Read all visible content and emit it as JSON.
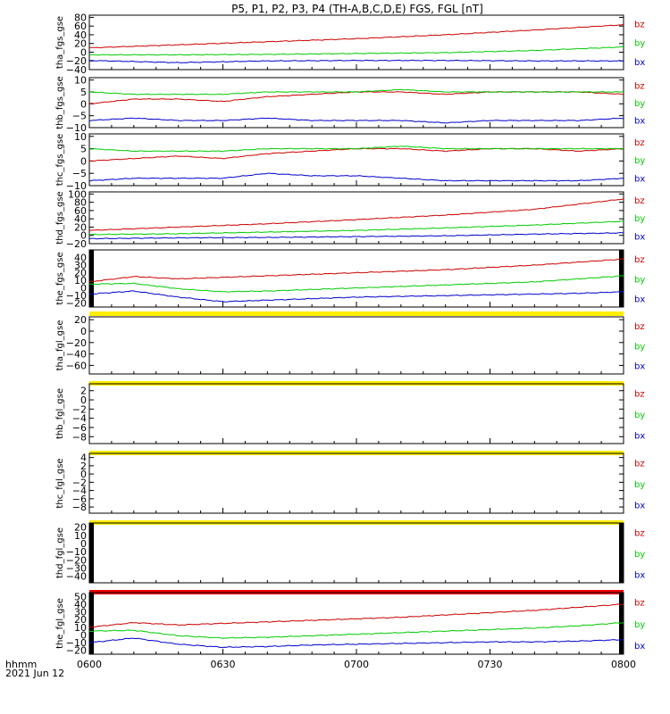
{
  "chart_data": {
    "type": "line",
    "title": "P5, P1, P2, P3, P4 (TH-A,B,C,D,E) FGS, FGL [nT]",
    "x_axis": {
      "ticks": [
        "0600",
        "0630",
        "0700",
        "0730",
        "0800"
      ],
      "range_minutes": [
        0,
        120
      ],
      "label_line1": "hhmm",
      "label_line2": "2021 Jun 12"
    },
    "legend": [
      "bz",
      "by",
      "bx"
    ],
    "colors": {
      "bz": "#cc0000",
      "by": "#00cc00",
      "bx": "#0000cc"
    },
    "panels": [
      {
        "ylabel": "tha_fgs_gse",
        "ylim": [
          -40,
          85
        ],
        "yticks": [
          -40,
          -20,
          0,
          20,
          40,
          60,
          80
        ],
        "yticklabels": [
          "−40",
          "−20",
          "0",
          "20",
          "40",
          "60",
          "80"
        ],
        "x": [
          0,
          20,
          40,
          60,
          80,
          100,
          120
        ],
        "series": [
          {
            "name": "bz",
            "values": [
              10,
              17,
              24,
              31,
              40,
              51,
              63
            ]
          },
          {
            "name": "by",
            "values": [
              -6,
              -6,
              -5,
              -3,
              -1,
              4,
              12
            ]
          },
          {
            "name": "bx",
            "values": [
              -19,
              -24,
              -20,
              -19,
              -19,
              -20,
              -20
            ]
          }
        ]
      },
      {
        "ylabel": "thb_fgs_gse",
        "ylim": [
          -10,
          11
        ],
        "yticks": [
          -10,
          -5,
          0,
          5,
          10
        ],
        "yticklabels": [
          "−10",
          "−5",
          "0",
          "5",
          "10"
        ],
        "x": [
          0,
          10,
          20,
          30,
          40,
          50,
          60,
          70,
          80,
          90,
          100,
          110,
          120
        ],
        "series": [
          {
            "name": "bz",
            "values": [
              0,
              2,
              2,
              1,
              3,
              4,
              5,
              5,
              4,
              5,
              5,
              5,
              4
            ]
          },
          {
            "name": "by",
            "values": [
              5,
              4,
              4,
              4,
              5,
              5,
              5,
              6,
              5,
              5,
              5,
              5,
              5
            ]
          },
          {
            "name": "bx",
            "values": [
              -7,
              -6,
              -7,
              -7,
              -6,
              -7,
              -7,
              -7,
              -8,
              -7,
              -7,
              -7,
              -6
            ]
          }
        ]
      },
      {
        "ylabel": "thc_fgs_gse",
        "ylim": [
          -10,
          11
        ],
        "yticks": [
          -10,
          -5,
          0,
          5,
          10
        ],
        "yticklabels": [
          "−10",
          "−5",
          "0",
          "5",
          "10"
        ],
        "x": [
          0,
          10,
          20,
          30,
          40,
          50,
          60,
          70,
          80,
          90,
          100,
          110,
          120
        ],
        "series": [
          {
            "name": "bz",
            "values": [
              0,
              1,
              2,
              1,
              3,
              4,
              5,
              5,
              4,
              5,
              5,
              4,
              5
            ]
          },
          {
            "name": "by",
            "values": [
              5,
              4,
              4,
              4,
              5,
              5,
              5,
              6,
              5,
              5,
              5,
              5,
              5
            ]
          },
          {
            "name": "bx",
            "values": [
              -8,
              -7,
              -7,
              -7,
              -5,
              -6,
              -6,
              -7,
              -8,
              -8,
              -8,
              -8,
              -7
            ]
          }
        ]
      },
      {
        "ylabel": "thd_fgs_gse",
        "ylim": [
          -20,
          105
        ],
        "yticks": [
          -20,
          0,
          20,
          40,
          60,
          80,
          100
        ],
        "yticklabels": [
          "−20",
          "0",
          "20",
          "40",
          "60",
          "80",
          "100"
        ],
        "x": [
          0,
          20,
          40,
          60,
          80,
          100,
          120
        ],
        "series": [
          {
            "name": "bz",
            "values": [
              12,
              20,
              28,
              38,
              49,
              63,
              88
            ]
          },
          {
            "name": "by",
            "values": [
              2,
              4,
              8,
              12,
              18,
              25,
              34
            ]
          },
          {
            "name": "bx",
            "values": [
              -8,
              -6,
              -5,
              -3,
              -1,
              3,
              6
            ]
          }
        ]
      },
      {
        "ylabel": "the_fgs_gse",
        "ylim": [
          -25,
          50
        ],
        "yticks": [
          -20,
          -10,
          0,
          10,
          20,
          30,
          40
        ],
        "yticklabels": [
          "−20",
          "−10",
          "0",
          "10",
          "20",
          "30",
          "40"
        ],
        "x": [
          0,
          10,
          20,
          30,
          40,
          50,
          60,
          70,
          80,
          90,
          100,
          110,
          120
        ],
        "series": [
          {
            "name": "bz",
            "values": [
              8,
              15,
              12,
              14,
              16,
              18,
              20,
              22,
              24,
              27,
              30,
              34,
              38
            ]
          },
          {
            "name": "by",
            "values": [
              5,
              6,
              -1,
              -5,
              -4,
              -2,
              0,
              2,
              4,
              6,
              8,
              12,
              16
            ]
          },
          {
            "name": "bx",
            "values": [
              -8,
              -4,
              -12,
              -18,
              -16,
              -14,
              -12,
              -11,
              -10,
              -9,
              -8,
              -7,
              -5
            ]
          }
        ]
      },
      {
        "ylabel": "tha_fgl_gse",
        "ylim": [
          -75,
          25
        ],
        "yticks": [
          -60,
          -40,
          -20,
          0,
          20
        ],
        "yticklabels": [
          "−60",
          "−40",
          "−20",
          "0",
          "20"
        ],
        "series": []
      },
      {
        "ylabel": "thb_fgl_gse",
        "ylim": [
          -9.5,
          3.5
        ],
        "yticks": [
          -8,
          -6,
          -4,
          -2,
          0,
          2
        ],
        "yticklabels": [
          "−8",
          "−6",
          "−4",
          "−2",
          "0",
          "2"
        ],
        "series": []
      },
      {
        "ylabel": "thc_fgl_gse",
        "ylim": [
          -9.5,
          5
        ],
        "yticks": [
          -8,
          -6,
          -4,
          -2,
          0,
          2,
          4
        ],
        "yticklabels": [
          "−8",
          "−6",
          "−4",
          "−2",
          "0",
          "2",
          "4"
        ],
        "series": []
      },
      {
        "ylabel": "thd_fgl_gse",
        "ylim": [
          -48,
          25
        ],
        "yticks": [
          -40,
          -30,
          -20,
          -10,
          0,
          10,
          20
        ],
        "yticklabels": [
          "−40",
          "−30",
          "−20",
          "−10",
          "0",
          "10",
          "20"
        ],
        "series": []
      },
      {
        "ylabel": "the_fgl_gse",
        "ylim": [
          -25,
          55
        ],
        "yticks": [
          -20,
          -10,
          0,
          10,
          20,
          30,
          40,
          50
        ],
        "yticklabels": [
          "−20",
          "−10",
          "0",
          "10",
          "20",
          "30",
          "40",
          "50"
        ],
        "x": [
          0,
          10,
          20,
          30,
          40,
          50,
          60,
          70,
          80,
          90,
          100,
          110,
          120
        ],
        "series": [
          {
            "name": "bz",
            "values": [
              10,
              16,
              13,
              15,
              17,
              19,
              21,
              23,
              26,
              29,
              32,
              36,
              40
            ]
          },
          {
            "name": "by",
            "values": [
              5,
              6,
              -1,
              -4,
              -3,
              -1,
              1,
              3,
              5,
              7,
              9,
              12,
              16
            ]
          },
          {
            "name": "bx",
            "values": [
              -10,
              -4,
              -12,
              -16,
              -15,
              -13,
              -12,
              -11,
              -10,
              -9,
              -9,
              -8,
              -6
            ]
          }
        ]
      }
    ]
  }
}
